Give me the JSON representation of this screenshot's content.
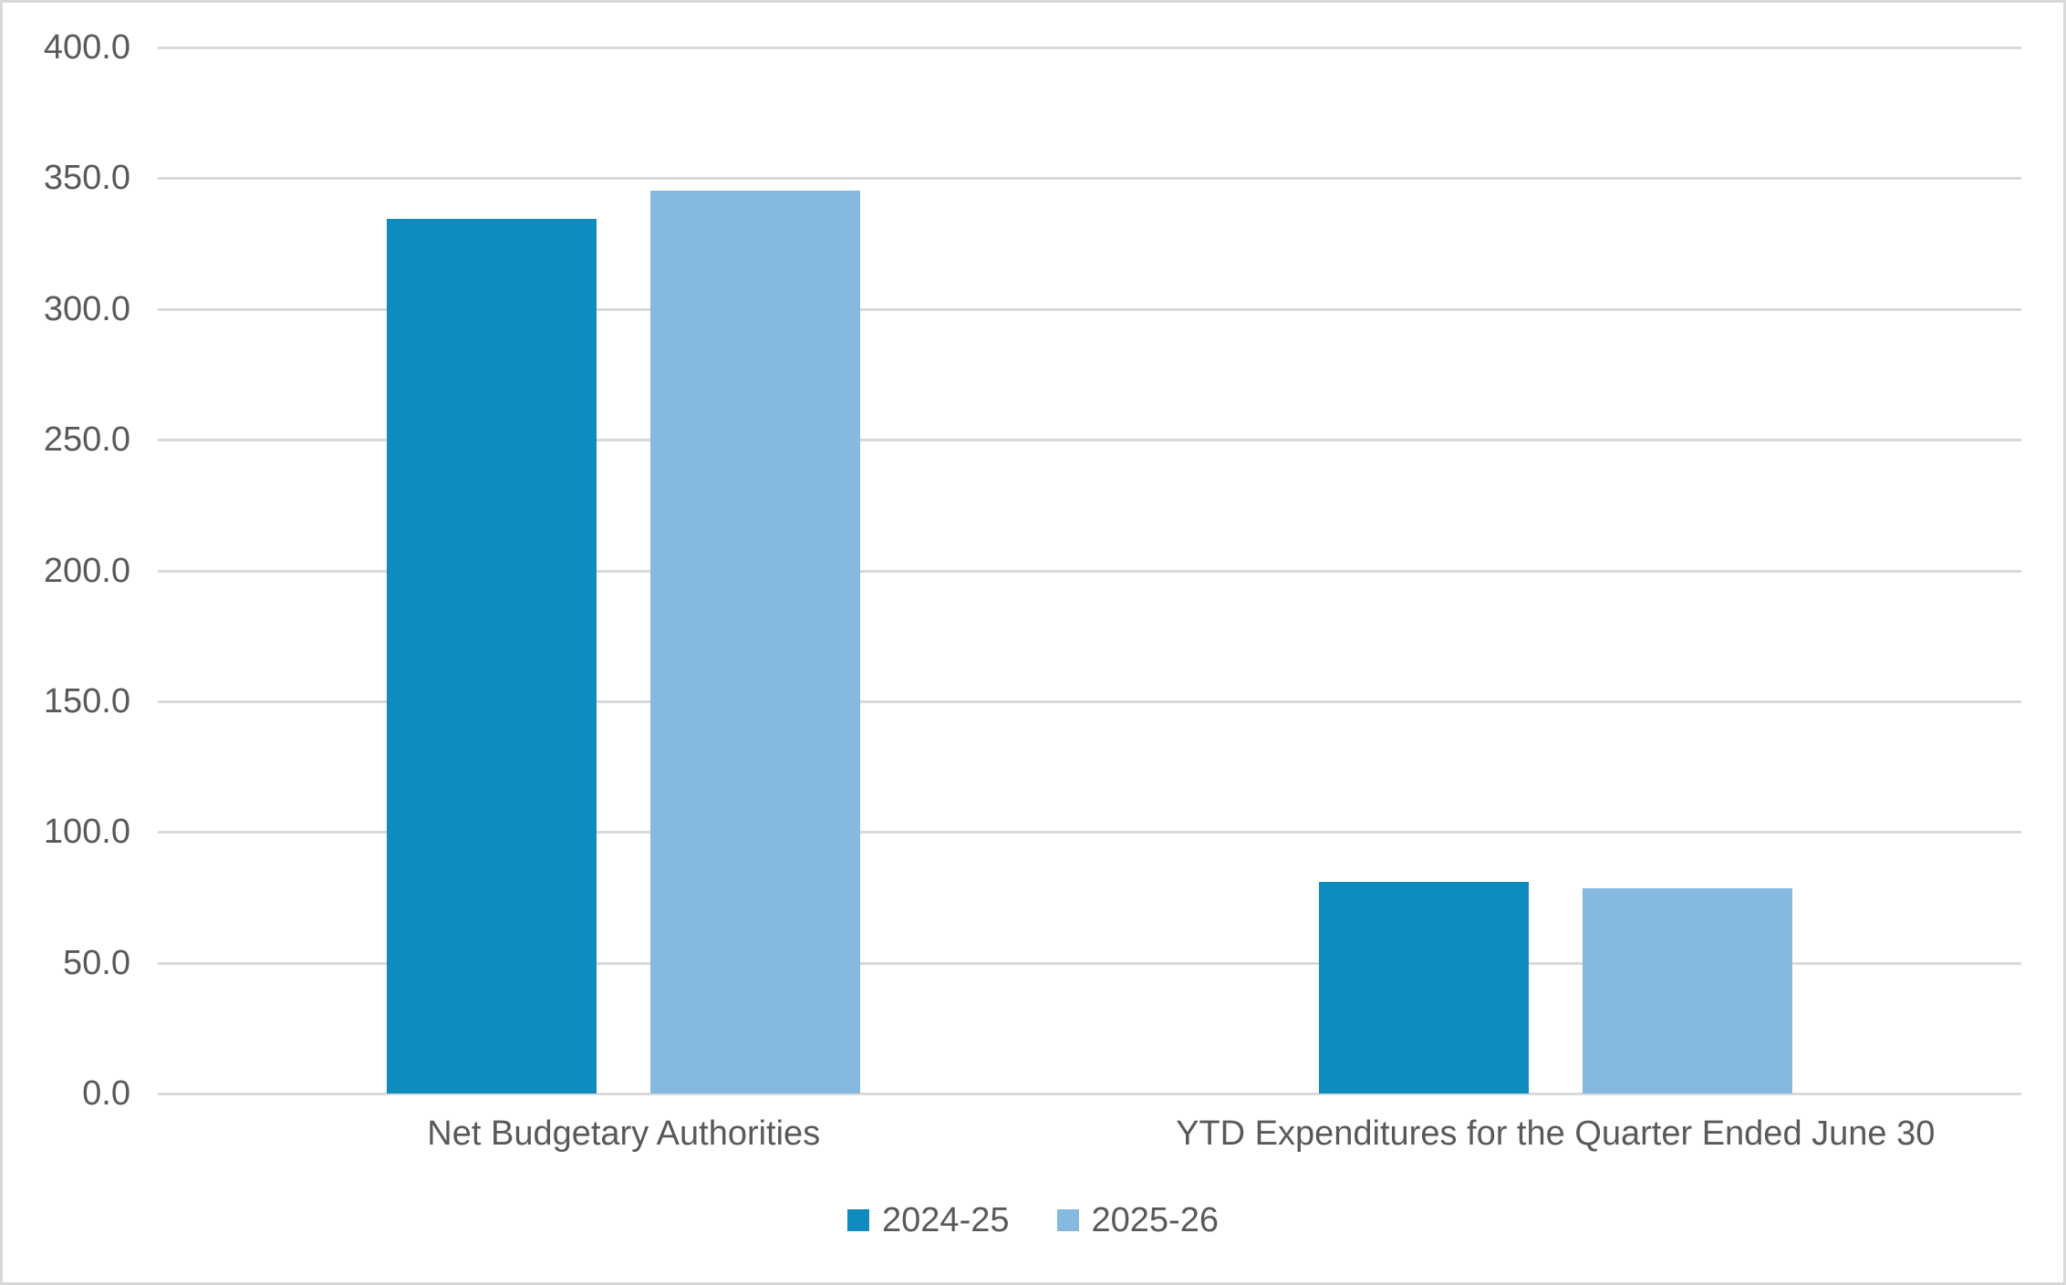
{
  "chart_data": {
    "type": "bar",
    "title": "",
    "xlabel": "",
    "ylabel": "",
    "categories": [
      "Net Budgetary Authorities",
      "YTD Expenditures for the Quarter Ended June 30"
    ],
    "series": [
      {
        "name": "2024-25",
        "color": "#0E8CBD",
        "values": [
          334.5,
          81.0
        ]
      },
      {
        "name": "2025-26",
        "color": "#85B9E0",
        "values": [
          345.2,
          78.6
        ]
      }
    ],
    "ylim": [
      0,
      400
    ],
    "ytick_step": 50,
    "ytick_labels": [
      "0.0",
      "50.0",
      "100.0",
      "150.0",
      "200.0",
      "250.0",
      "300.0",
      "350.0",
      "400.0"
    ],
    "grid": true,
    "gridline_color": "#D9D9D9",
    "axis_text_color": "#595959",
    "legend_position": "bottom",
    "legend_entries": [
      "2024-25",
      "2025-26"
    ]
  }
}
